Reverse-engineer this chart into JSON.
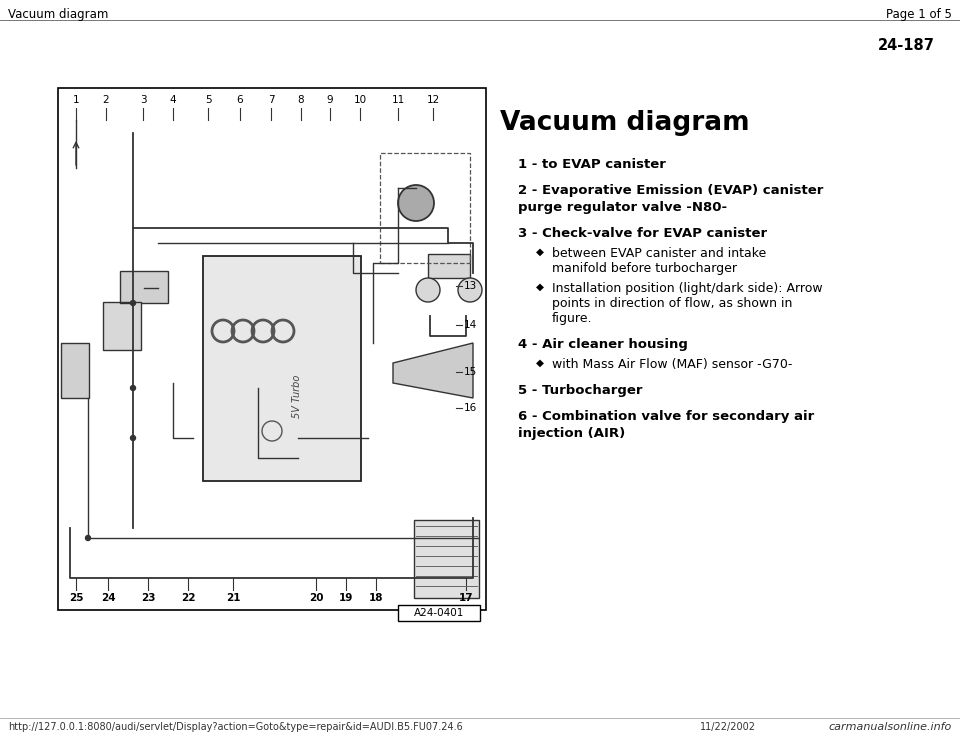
{
  "page_header_left": "Vacuum diagram",
  "page_header_right": "Page 1 of 5",
  "page_number": "24-187",
  "section_title": "Vacuum diagram",
  "items": [
    {
      "number": "1",
      "bold_text": "to EVAP canister",
      "sub_items": []
    },
    {
      "number": "2",
      "bold_text": "Evaporative Emission (EVAP) canister\npurge regulator valve -N80-",
      "sub_items": []
    },
    {
      "number": "3",
      "bold_text": "Check-valve for EVAP canister",
      "sub_items": [
        "between EVAP canister and intake\nmanifold before turbocharger",
        "Installation position (light/dark side): Arrow\npoints in direction of flow, as shown in\nfigure."
      ]
    },
    {
      "number": "4",
      "bold_text": "Air cleaner housing",
      "sub_items": [
        "with Mass Air Flow (MAF) sensor -G70-"
      ]
    },
    {
      "number": "5",
      "bold_text": "Turbocharger",
      "sub_items": []
    },
    {
      "number": "6",
      "bold_text": "Combination valve for secondary air\ninjection (AIR)",
      "sub_items": []
    }
  ],
  "footer_url": "http://127.0.0.1:8080/audi/servlet/Display?action=Goto&type=repair&id=AUDI.B5.FU07.24.6",
  "footer_right": "carmanualsonline.info",
  "footer_date": "11/22/2002",
  "bg_color": "#ffffff",
  "text_color": "#000000",
  "header_font_size": 8.5,
  "title_font_size": 19,
  "item_font_size": 9.5,
  "sub_font_size": 9,
  "diagram_label": "A24-0401",
  "diagram_numbers_top": [
    "1",
    "2",
    "3",
    "4",
    "5",
    "6",
    "7",
    "8",
    "9",
    "10",
    "11",
    "12"
  ],
  "diagram_numbers_right": [
    "13",
    "14",
    "15",
    "16"
  ],
  "diagram_numbers_bottom_left": [
    "25",
    "24",
    "23",
    "22",
    "21"
  ],
  "diagram_numbers_bottom_right": [
    "20",
    "19",
    "18",
    "17"
  ]
}
